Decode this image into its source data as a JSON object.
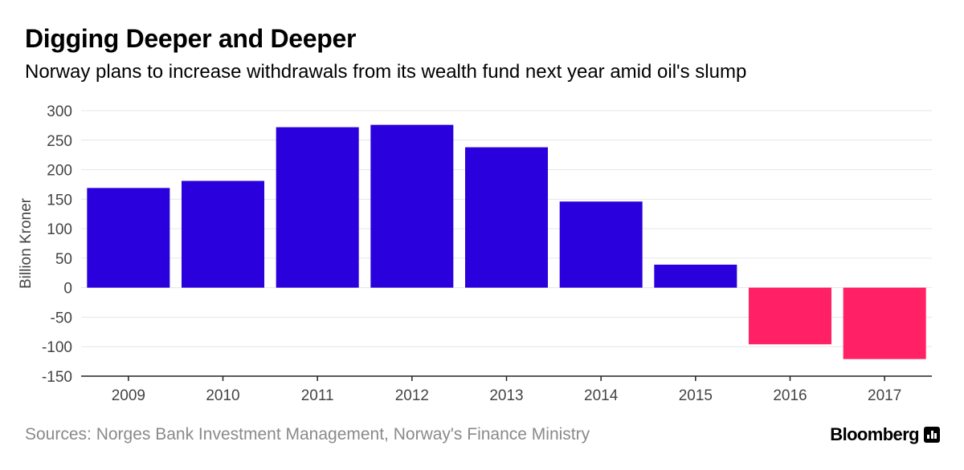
{
  "title": "Digging Deeper and Deeper",
  "subtitle": "Norway plans to increase withdrawals from its wealth fund next year amid oil's slump",
  "source": "Sources: Norges Bank Investment Management, Norway's Finance Ministry",
  "brand": "Bloomberg",
  "brand_icon": "bloomberg-terminal-icon",
  "colors": {
    "positive": "#2a00dc",
    "negative": "#ff2066",
    "grid": "#e6e6e6",
    "axis": "#222222",
    "tick_text": "#444444",
    "source_text": "#8a8a8a"
  },
  "chart_data": {
    "type": "bar",
    "title": "Digging Deeper and Deeper",
    "subtitle": "Norway plans to increase withdrawals from its wealth fund next year amid oil's slump",
    "xlabel": "",
    "ylabel": "Billion Kroner",
    "categories": [
      "2009",
      "2010",
      "2011",
      "2012",
      "2013",
      "2014",
      "2015",
      "2016",
      "2017"
    ],
    "values": [
      169,
      181,
      272,
      276,
      238,
      146,
      39,
      -96,
      -121
    ],
    "ylim": [
      -150,
      300
    ],
    "yticks": [
      300,
      250,
      200,
      150,
      100,
      50,
      0,
      -50,
      -100,
      -150
    ],
    "ytick_labels": [
      "300",
      "250",
      "200",
      "150",
      "100",
      "50",
      "0",
      "-50",
      "-100",
      "-150"
    ],
    "grid": true,
    "legend": "none"
  }
}
